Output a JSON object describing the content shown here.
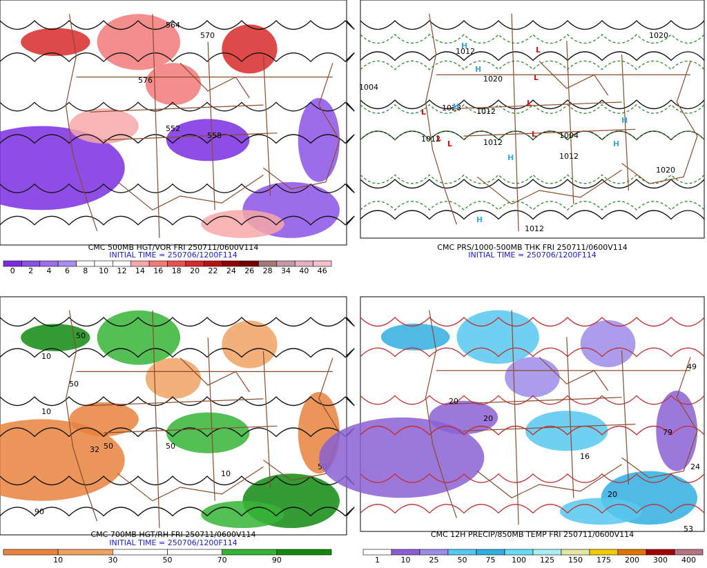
{
  "panels": [
    {
      "title": "CMC 500MB HGT/VOR FRI 250711/0600V114",
      "initial_time": "INITIAL TIME = 250706/1200F114",
      "colorbar": {
        "colors": [
          "#7a2ee0",
          "#8c52e6",
          "#9b6fea",
          "#a88cee",
          "#ffffff",
          "#ffffff",
          "#ffffff",
          "#f6a8a8",
          "#f27a7a",
          "#ea5050",
          "#d82a2a",
          "#b81414",
          "#900000",
          "#740000",
          "#a47878",
          "#c498a8",
          "#e4b0c4",
          "#f6c0cc"
        ],
        "labels": [
          "0",
          "2",
          "4",
          "6",
          "8",
          "10",
          "12",
          "14",
          "16",
          "18",
          "20",
          "22",
          "24",
          "26",
          "28",
          "34",
          "40",
          "46"
        ]
      },
      "contour_labels": [
        "564",
        "570",
        "576",
        "552",
        "558"
      ]
    },
    {
      "title": "CMC PRS/1000-500MB THK FRI 250711/0600V114",
      "initial_time": "INITIAL TIME = 250706/1200F114",
      "centers": [
        "H",
        "H",
        "H",
        "L",
        "L",
        "L",
        "L",
        "L",
        "L",
        "L",
        "H",
        "H",
        "H",
        "H"
      ],
      "contour_labels": [
        "1012",
        "1004",
        "1020",
        "1028",
        "1012",
        "1012",
        "1012",
        "1004",
        "1012",
        "1020",
        "1012",
        "1020"
      ]
    },
    {
      "title": "CMC 700MB HGT/RH FRI 250711/0600V114",
      "initial_time": "INITIAL TIME = 250706/1200F114",
      "colorbar": {
        "colors": [
          "#e8823e",
          "#f0a264",
          "#ffffff",
          "#ffffff",
          "#36b436",
          "#128a12"
        ],
        "labels": [
          "10",
          "30",
          "50",
          "70",
          "90"
        ]
      },
      "contour_labels": [
        "50",
        "10",
        "50",
        "10",
        "32",
        "50",
        "90",
        "50",
        "10",
        "50"
      ]
    },
    {
      "title": "CMC 12H PRECIP/850MB TEMP FRI 250711/0600V114",
      "colorbar": {
        "colors": [
          "#ffffff",
          "#8a60d4",
          "#9c8ce8",
          "#58c8f0",
          "#30aee0",
          "#66dcf2",
          "#a8ecf4",
          "#e4e4a4",
          "#f2ca00",
          "#e27200",
          "#a20000",
          "#b47484"
        ],
        "labels": [
          "1",
          "10",
          "25",
          "50",
          "75",
          "100",
          "125",
          "150",
          "175",
          "200",
          "300",
          "400"
        ]
      },
      "contour_labels": [
        "20",
        "20",
        "16",
        "20",
        "24",
        "49",
        "79",
        "53"
      ]
    }
  ]
}
